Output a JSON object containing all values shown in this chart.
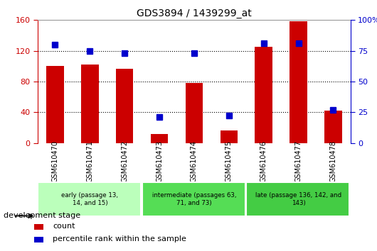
{
  "title": "GDS3894 / 1439299_at",
  "samples": [
    "GSM610470",
    "GSM610471",
    "GSM610472",
    "GSM610473",
    "GSM610474",
    "GSM610475",
    "GSM610476",
    "GSM610477",
    "GSM610478"
  ],
  "count_values": [
    100,
    102,
    97,
    12,
    78,
    16,
    125,
    158,
    42
  ],
  "percentile_values": [
    80,
    75,
    73,
    21,
    73,
    22,
    81,
    81,
    27
  ],
  "left_ylim": [
    0,
    160
  ],
  "right_ylim": [
    0,
    100
  ],
  "left_yticks": [
    0,
    40,
    80,
    120,
    160
  ],
  "right_yticks": [
    0,
    25,
    50,
    75,
    100
  ],
  "right_yticklabels": [
    "0",
    "25",
    "50",
    "75",
    "100%"
  ],
  "groups": [
    {
      "label": "early (passage 13,\n14, and 15)",
      "start": 0,
      "end": 3,
      "color": "#bbffbb"
    },
    {
      "label": "intermediate (passages 63,\n71, and 73)",
      "start": 3,
      "end": 6,
      "color": "#55dd55"
    },
    {
      "label": "late (passage 136, 142, and\n143)",
      "start": 6,
      "end": 9,
      "color": "#44cc44"
    }
  ],
  "bar_color": "#cc0000",
  "percentile_color": "#0000cc",
  "tick_color_left": "#cc0000",
  "tick_color_right": "#0000cc",
  "xtick_bg_color": "#cccccc",
  "plot_bg_color": "#ffffff",
  "grid_color": "#000000",
  "legend_count_color": "#cc0000",
  "legend_pct_color": "#0000cc",
  "dev_stage_label": "development stage",
  "legend_count_label": "count",
  "legend_pct_label": "percentile rank within the sample",
  "bar_width": 0.5,
  "pct_marker_size": 6
}
